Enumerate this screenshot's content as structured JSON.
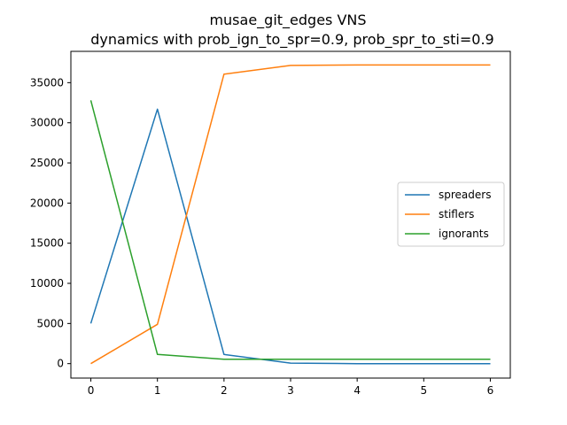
{
  "chart_data": {
    "type": "line",
    "title": "musae_git_edges VNS",
    "subtitle": "dynamics with prob_ign_to_spr=0.9, prob_spr_to_sti=0.9",
    "xlabel": "",
    "ylabel": "",
    "x": [
      0,
      1,
      2,
      3,
      4,
      5,
      6
    ],
    "xlim": [
      -0.3,
      6.3
    ],
    "ylim": [
      -1800,
      38900
    ],
    "xticks": [
      0,
      1,
      2,
      3,
      4,
      5,
      6
    ],
    "yticks": [
      0,
      5000,
      10000,
      15000,
      20000,
      25000,
      30000,
      35000
    ],
    "grid": false,
    "legend_position": "center-right",
    "series": [
      {
        "name": "spreaders",
        "color": "#1f77b4",
        "values": [
          5000,
          31700,
          1150,
          60,
          0,
          0,
          0
        ]
      },
      {
        "name": "stiflers",
        "color": "#ff7f0e",
        "values": [
          0,
          4900,
          36050,
          37150,
          37200,
          37200,
          37200
        ]
      },
      {
        "name": "ignorants",
        "color": "#2ca02c",
        "values": [
          32800,
          1150,
          550,
          550,
          550,
          550,
          550
        ]
      }
    ]
  }
}
